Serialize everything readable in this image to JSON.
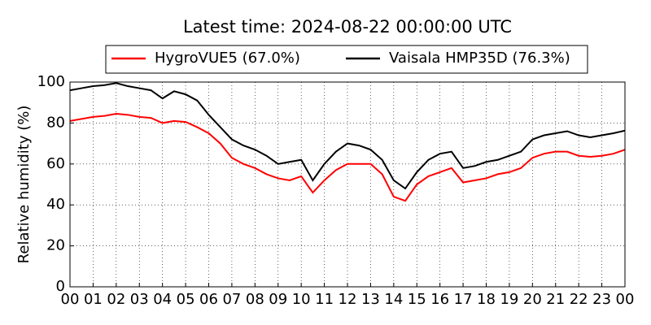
{
  "chart_data": {
    "type": "line",
    "title": "Latest time: 2024-08-22 00:00:00 UTC",
    "y_label": "Relative humidity (%)",
    "x": [
      0,
      0.5,
      1,
      1.5,
      2,
      2.5,
      3,
      3.5,
      4,
      4.5,
      5,
      5.5,
      6,
      6.5,
      7,
      7.5,
      8,
      8.5,
      9,
      9.5,
      10,
      10.5,
      11,
      11.5,
      12,
      12.5,
      13,
      13.5,
      14,
      14.5,
      15,
      15.5,
      16,
      16.5,
      17,
      17.5,
      18,
      18.5,
      19,
      19.5,
      20,
      20.5,
      21,
      21.5,
      22,
      22.5,
      23,
      23.5,
      24
    ],
    "series": [
      {
        "name": "HygroVUE5 (67.0%)",
        "color": "#ff0000",
        "values": [
          81,
          82,
          83,
          83.5,
          84.5,
          84,
          83,
          82.5,
          80,
          81,
          80.5,
          78,
          75,
          70,
          63,
          60,
          58,
          55,
          53,
          52,
          54,
          46,
          52,
          57,
          60,
          60,
          60,
          55,
          44,
          42,
          50,
          54,
          56,
          58,
          51,
          52,
          53,
          55,
          56,
          58,
          63,
          65,
          66,
          66,
          64,
          63.5,
          64,
          65,
          67
        ]
      },
      {
        "name": "Vaisala HMP35D (76.3%)",
        "color": "#000000",
        "values": [
          96,
          97,
          98,
          98.5,
          99.5,
          98,
          97,
          96,
          92,
          95.5,
          94,
          91,
          84,
          78,
          72,
          69,
          67,
          64,
          60,
          61,
          62,
          52,
          60,
          66,
          70,
          69,
          67,
          62,
          52,
          48,
          56,
          62,
          65,
          66,
          58,
          59,
          61,
          62,
          64,
          66,
          72,
          74,
          75,
          76,
          74,
          73,
          74,
          75,
          76.3
        ]
      }
    ],
    "xlim": [
      0,
      24
    ],
    "ylim": [
      0,
      100
    ],
    "yticks": [
      0,
      20,
      40,
      60,
      80,
      100
    ],
    "xticks": [
      {
        "value": 0,
        "label": "00"
      },
      {
        "value": 1,
        "label": "01"
      },
      {
        "value": 2,
        "label": "02"
      },
      {
        "value": 3,
        "label": "03"
      },
      {
        "value": 4,
        "label": "04"
      },
      {
        "value": 5,
        "label": "05"
      },
      {
        "value": 6,
        "label": "06"
      },
      {
        "value": 7,
        "label": "07"
      },
      {
        "value": 8,
        "label": "08"
      },
      {
        "value": 9,
        "label": "09"
      },
      {
        "value": 10,
        "label": "10"
      },
      {
        "value": 11,
        "label": "11"
      },
      {
        "value": 12,
        "label": "12"
      },
      {
        "value": 13,
        "label": "13"
      },
      {
        "value": 14,
        "label": "14"
      },
      {
        "value": 15,
        "label": "15"
      },
      {
        "value": 16,
        "label": "16"
      },
      {
        "value": 17,
        "label": "17"
      },
      {
        "value": 18,
        "label": "18"
      },
      {
        "value": 19,
        "label": "19"
      },
      {
        "value": 20,
        "label": "20"
      },
      {
        "value": 21,
        "label": "21"
      },
      {
        "value": 22,
        "label": "22"
      },
      {
        "value": 23,
        "label": "23"
      },
      {
        "value": 24,
        "label": "00"
      }
    ],
    "grid": true,
    "legend": "top"
  }
}
